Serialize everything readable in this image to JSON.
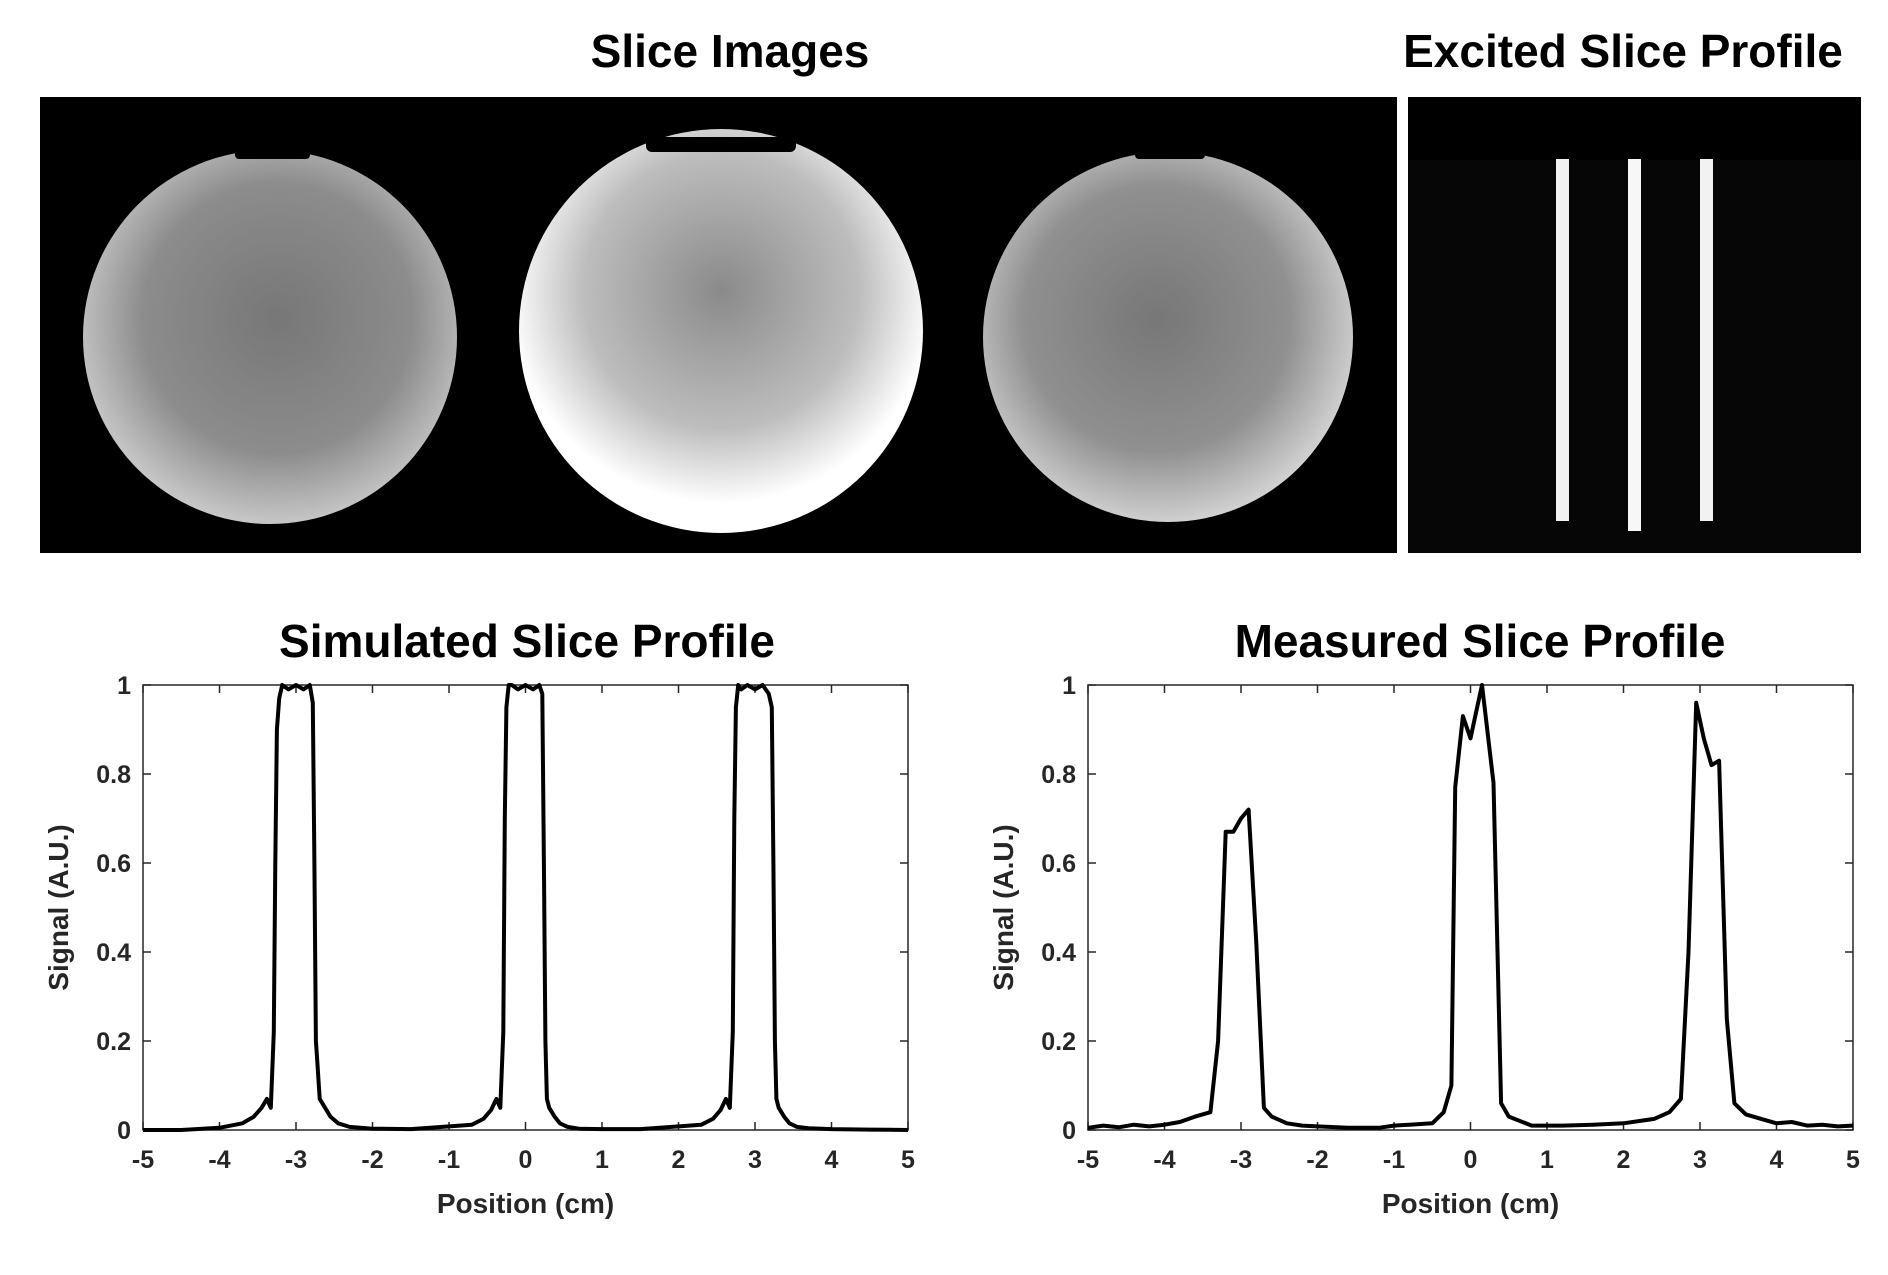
{
  "titles": {
    "slice_images": "Slice Images",
    "excited_profile": "Excited Slice Profile"
  },
  "images": {
    "slice_images": {
      "description_count": 3,
      "background": "#000000"
    },
    "excited_profile": {
      "bar_count": 3,
      "background": "#000000"
    }
  },
  "chart_data": [
    {
      "type": "line",
      "title": "Simulated Slice Profile",
      "xlabel": "Position (cm)",
      "ylabel": "Signal (A.U.)",
      "xlim": [
        -5,
        5
      ],
      "ylim": [
        0,
        1
      ],
      "xticks": [
        "-5",
        "-4",
        "-3",
        "-2",
        "-1",
        "0",
        "1",
        "2",
        "3",
        "4",
        "5"
      ],
      "yticks": [
        "0",
        "0.2",
        "0.4",
        "0.6",
        "0.8",
        "1"
      ],
      "grid": false,
      "line_color": "#000000",
      "series": [
        {
          "x": [
            -5,
            -4.5,
            -4,
            -3.7,
            -3.55,
            -3.45,
            -3.38,
            -3.33,
            -3.29,
            -3.27,
            -3.25,
            -3.22,
            -3.18,
            -3.1,
            -3.0,
            -2.9,
            -2.82,
            -2.78,
            -2.76,
            -2.74,
            -2.72,
            -2.69,
            -2.62,
            -2.55,
            -2.45,
            -2.3,
            -2.0,
            -1.5,
            -0.7,
            -0.55,
            -0.45,
            -0.38,
            -0.33,
            -0.29,
            -0.27,
            -0.25,
            -0.22,
            -0.18,
            -0.1,
            0.0,
            0.1,
            0.18,
            0.22,
            0.24,
            0.26,
            0.28,
            0.31,
            0.38,
            0.45,
            0.55,
            0.7,
            1.0,
            1.5,
            2.3,
            2.45,
            2.55,
            2.62,
            2.67,
            2.71,
            2.73,
            2.75,
            2.78,
            2.82,
            2.9,
            3.0,
            3.1,
            3.18,
            3.22,
            3.24,
            3.26,
            3.28,
            3.31,
            3.38,
            3.45,
            3.55,
            3.7,
            4.0,
            4.5,
            5
          ],
          "y": [
            0.0,
            0.0,
            0.005,
            0.015,
            0.03,
            0.05,
            0.07,
            0.05,
            0.22,
            0.6,
            0.9,
            0.97,
            1.0,
            0.99,
            1.0,
            0.99,
            1.0,
            0.96,
            0.6,
            0.2,
            0.15,
            0.07,
            0.05,
            0.03,
            0.015,
            0.007,
            0.003,
            0.002,
            0.012,
            0.025,
            0.045,
            0.07,
            0.05,
            0.22,
            0.7,
            0.95,
            1.0,
            1.0,
            0.99,
            1.0,
            0.99,
            1.0,
            0.98,
            0.6,
            0.2,
            0.07,
            0.05,
            0.03,
            0.015,
            0.007,
            0.003,
            0.002,
            0.002,
            0.012,
            0.025,
            0.045,
            0.07,
            0.05,
            0.22,
            0.7,
            0.95,
            1.0,
            0.99,
            1.0,
            0.99,
            1.0,
            0.98,
            0.95,
            0.6,
            0.2,
            0.07,
            0.05,
            0.03,
            0.015,
            0.007,
            0.004,
            0.002,
            0.001,
            0.0
          ]
        }
      ]
    },
    {
      "type": "line",
      "title": "Measured Slice Profile",
      "xlabel": "Position (cm)",
      "ylabel": "Signal (A.U.)",
      "xlim": [
        -5,
        5
      ],
      "ylim": [
        0,
        1
      ],
      "xticks": [
        "-5",
        "-4",
        "-3",
        "-2",
        "-1",
        "0",
        "1",
        "2",
        "3",
        "4",
        "5"
      ],
      "yticks": [
        "0",
        "0.2",
        "0.4",
        "0.6",
        "0.8",
        "1"
      ],
      "grid": false,
      "line_color": "#000000",
      "series": [
        {
          "x": [
            -5,
            -4.8,
            -4.6,
            -4.4,
            -4.2,
            -4.0,
            -3.8,
            -3.6,
            -3.4,
            -3.3,
            -3.2,
            -3.1,
            -3.0,
            -2.9,
            -2.8,
            -2.7,
            -2.6,
            -2.4,
            -2.2,
            -2.0,
            -1.6,
            -1.2,
            -1.0,
            -0.8,
            -0.5,
            -0.35,
            -0.25,
            -0.2,
            -0.1,
            0.0,
            0.05,
            0.15,
            0.3,
            0.4,
            0.5,
            0.8,
            1.2,
            1.6,
            2.0,
            2.4,
            2.6,
            2.75,
            2.85,
            2.95,
            3.05,
            3.15,
            3.25,
            3.35,
            3.45,
            3.6,
            3.8,
            4.0,
            4.2,
            4.4,
            4.6,
            4.8,
            5.0
          ],
          "y": [
            0.005,
            0.01,
            0.006,
            0.012,
            0.008,
            0.012,
            0.018,
            0.03,
            0.04,
            0.2,
            0.67,
            0.67,
            0.7,
            0.72,
            0.42,
            0.05,
            0.03,
            0.015,
            0.01,
            0.008,
            0.005,
            0.005,
            0.01,
            0.012,
            0.015,
            0.04,
            0.1,
            0.77,
            0.93,
            0.88,
            0.92,
            1.0,
            0.78,
            0.06,
            0.03,
            0.01,
            0.01,
            0.012,
            0.015,
            0.025,
            0.04,
            0.07,
            0.4,
            0.96,
            0.88,
            0.82,
            0.83,
            0.25,
            0.06,
            0.035,
            0.025,
            0.015,
            0.018,
            0.01,
            0.012,
            0.008,
            0.01
          ]
        }
      ]
    }
  ]
}
